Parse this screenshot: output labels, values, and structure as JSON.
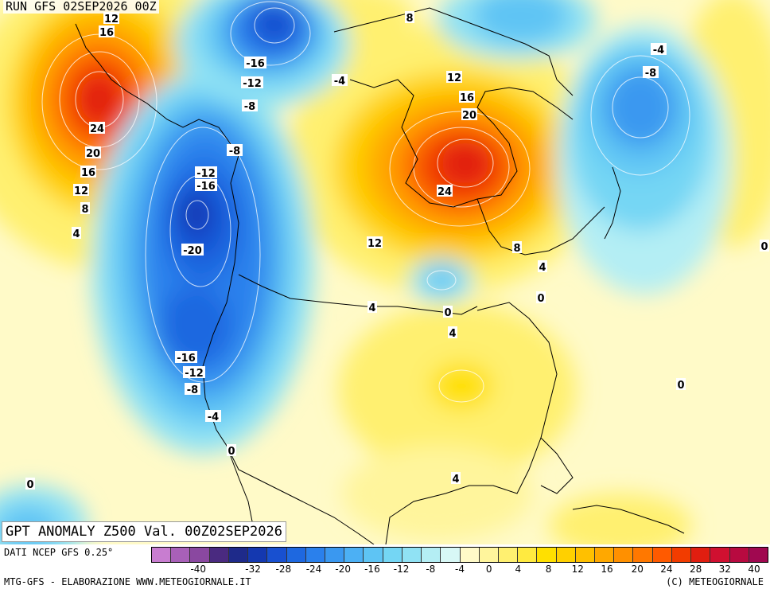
{
  "header": {
    "run_title": "RUN GFS 02SEP2026 00Z"
  },
  "field_title": "GPT ANOMALY Z500 Val. 00Z02SEP2026",
  "footer": {
    "source": "DATI NCEP GFS 0.25°",
    "credit_left": "MTG-GFS - ELABORAZIONE WWW.METEOGIORNALE.IT",
    "credit_right": "(C) METEOGIORNALE"
  },
  "colorbar": {
    "ticks": [
      "-40",
      "-32",
      "-28",
      "-24",
      "-20",
      "-16",
      "-12",
      "-8",
      "-4",
      "0",
      "4",
      "8",
      "12",
      "16",
      "20",
      "24",
      "28",
      "32",
      "40"
    ],
    "colors": [
      "#c87dd0",
      "#a860b8",
      "#8a48a0",
      "#4a2a80",
      "#1e2a8a",
      "#1438b0",
      "#1850d0",
      "#1e68e0",
      "#2a80ec",
      "#3a98f0",
      "#4cb0f4",
      "#5ec4f4",
      "#74d6f4",
      "#90e2f4",
      "#b4eef4",
      "#d8f8f6",
      "#fffac8",
      "#fff59c",
      "#fff070",
      "#ffea40",
      "#ffe000",
      "#ffd000",
      "#ffc000",
      "#ffa800",
      "#ff9000",
      "#ff7800",
      "#ff5a00",
      "#f23c00",
      "#e01e10",
      "#d01030",
      "#b80a40",
      "#a00850"
    ]
  },
  "map_labels": [
    "12",
    "16",
    "24",
    "20",
    "16",
    "12",
    "8",
    "4",
    "-16",
    "-12",
    "-8",
    "-8",
    "-12",
    "-16",
    "-20",
    "-16",
    "-12",
    "-8",
    "-4",
    "0",
    "8",
    "-4",
    "12",
    "16",
    "20",
    "24",
    "12",
    "8",
    "4",
    "4",
    "0",
    "0",
    "4",
    "0",
    "4",
    "-4",
    "-8",
    "0",
    "0"
  ]
}
